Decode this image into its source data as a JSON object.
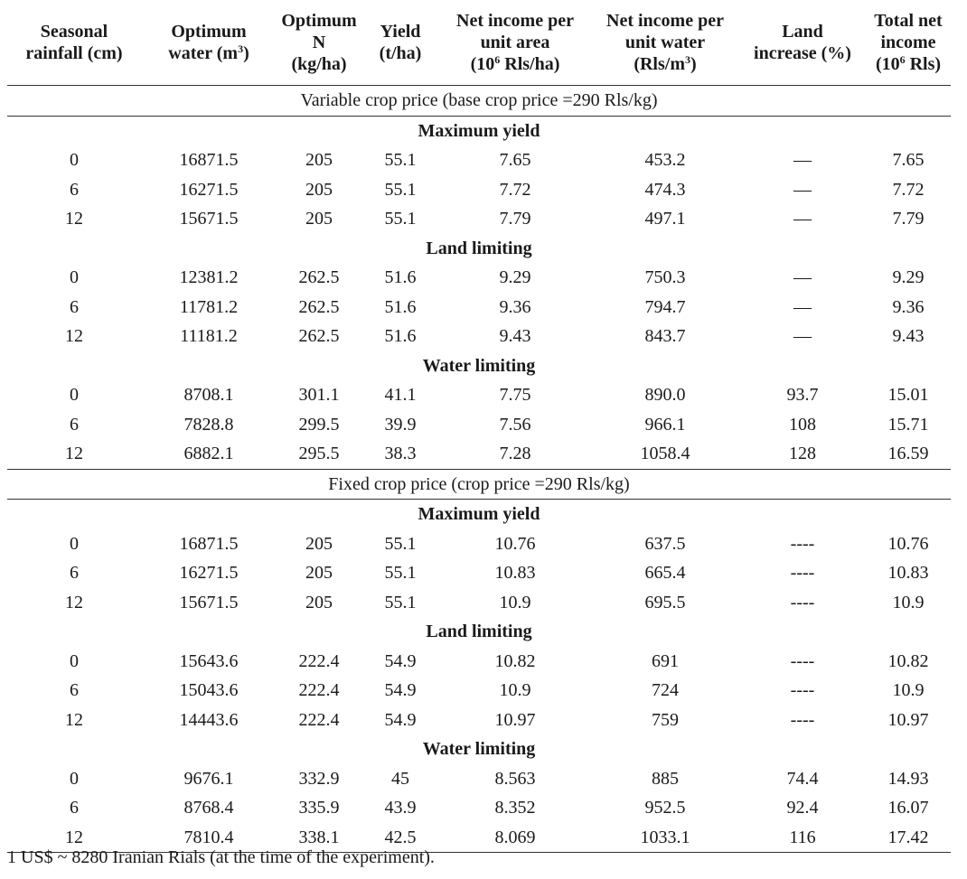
{
  "header": {
    "rainfall": [
      "Seasonal",
      "rainfall (cm)"
    ],
    "water": [
      "Optimum",
      "water (m",
      "3",
      ")"
    ],
    "nitrogen": [
      "Optimum",
      "N",
      "(kg/ha)"
    ],
    "yield": [
      "Yield",
      "(t/ha)"
    ],
    "income_area": [
      "Net income per",
      "unit area",
      "(10",
      "6",
      " Rls/ha)"
    ],
    "income_water": [
      "Net income per",
      "unit water",
      "(Rls/m",
      "3",
      ")"
    ],
    "land": [
      "Land",
      "increase (%)"
    ],
    "total": [
      "Total net",
      "income",
      "(10",
      "6",
      " Rls)"
    ]
  },
  "sections": [
    {
      "title": "Variable crop price (base crop price =290 Rls/kg)",
      "groups": [
        {
          "title": "Maximum yield",
          "rows": [
            [
              "0",
              "16871.5",
              "205",
              "55.1",
              "7.65",
              "453.2",
              "—",
              "7.65"
            ],
            [
              "6",
              "16271.5",
              "205",
              "55.1",
              "7.72",
              "474.3",
              "—",
              "7.72"
            ],
            [
              "12",
              "15671.5",
              "205",
              "55.1",
              "7.79",
              "497.1",
              "—",
              "7.79"
            ]
          ]
        },
        {
          "title": "Land limiting",
          "rows": [
            [
              "0",
              "12381.2",
              "262.5",
              "51.6",
              "9.29",
              "750.3",
              "—",
              "9.29"
            ],
            [
              "6",
              "11781.2",
              "262.5",
              "51.6",
              "9.36",
              "794.7",
              "—",
              "9.36"
            ],
            [
              "12",
              "11181.2",
              "262.5",
              "51.6",
              "9.43",
              "843.7",
              "—",
              "9.43"
            ]
          ]
        },
        {
          "title": "Water limiting",
          "rows": [
            [
              "0",
              "8708.1",
              "301.1",
              "41.1",
              "7.75",
              "890.0",
              "93.7",
              "15.01"
            ],
            [
              "6",
              "7828.8",
              "299.5",
              "39.9",
              "7.56",
              "966.1",
              "108",
              "15.71"
            ],
            [
              "12",
              "6882.1",
              "295.5",
              "38.3",
              "7.28",
              "1058.4",
              "128",
              "16.59"
            ]
          ]
        }
      ]
    },
    {
      "title": "Fixed crop price (crop price =290 Rls/kg)",
      "groups": [
        {
          "title": "Maximum yield",
          "rows": [
            [
              "0",
              "16871.5",
              "205",
              "55.1",
              "10.76",
              "637.5",
              "----",
              "10.76"
            ],
            [
              "6",
              "16271.5",
              "205",
              "55.1",
              "10.83",
              "665.4",
              "----",
              "10.83"
            ],
            [
              "12",
              "15671.5",
              "205",
              "55.1",
              "10.9",
              "695.5",
              "----",
              "10.9"
            ]
          ]
        },
        {
          "title": "Land limiting",
          "rows": [
            [
              "0",
              "15643.6",
              "222.4",
              "54.9",
              "10.82",
              "691",
              "----",
              "10.82"
            ],
            [
              "6",
              "15043.6",
              "222.4",
              "54.9",
              "10.9",
              "724",
              "----",
              "10.9"
            ],
            [
              "12",
              "14443.6",
              "222.4",
              "54.9",
              "10.97",
              "759",
              "----",
              "10.97"
            ]
          ]
        },
        {
          "title": "Water limiting",
          "rows": [
            [
              "0",
              "9676.1",
              "332.9",
              "45",
              "8.563",
              "885",
              "74.4",
              "14.93"
            ],
            [
              "6",
              "8768.4",
              "335.9",
              "43.9",
              "8.352",
              "952.5",
              "92.4",
              "16.07"
            ],
            [
              "12",
              "7810.4",
              "338.1",
              "42.5",
              "8.069",
              "1033.1",
              "116",
              "17.42"
            ]
          ]
        }
      ]
    }
  ],
  "footnote": "1 US$ ~ 8280 Iranian Rials (at the time of the experiment)."
}
